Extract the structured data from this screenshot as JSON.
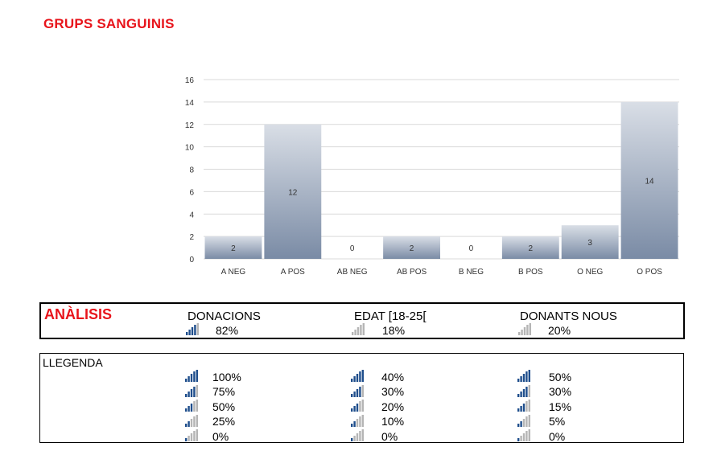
{
  "title": "GRUPS SANGUINIS",
  "chart_data": {
    "type": "bar",
    "categories": [
      "A NEG",
      "A POS",
      "AB NEG",
      "AB POS",
      "B NEG",
      "B POS",
      "O NEG",
      "O POS"
    ],
    "values": [
      2,
      12,
      0,
      2,
      0,
      2,
      3,
      14
    ],
    "ylim": [
      0,
      16
    ],
    "yticks": [
      0,
      2,
      4,
      6,
      8,
      10,
      12,
      14,
      16
    ],
    "grid": true,
    "bar_gradient": [
      "#d9dee6",
      "#7a8ba5"
    ]
  },
  "analysis": {
    "title": "ANÀLISIS",
    "columns": [
      {
        "label": "DONACIONS",
        "value": "82%",
        "level": 4
      },
      {
        "label": "EDAT [18-25[",
        "value": "18%",
        "level": 0
      },
      {
        "label": "DONANTS NOUS",
        "value": "20%",
        "level": 0
      }
    ]
  },
  "legend": {
    "title": "LLEGENDA",
    "columns": [
      {
        "rows": [
          {
            "value": "100%",
            "level": 5
          },
          {
            "value": "75%",
            "level": 4
          },
          {
            "value": "50%",
            "level": 3
          },
          {
            "value": "25%",
            "level": 2
          },
          {
            "value": "0%",
            "level": 1
          }
        ]
      },
      {
        "rows": [
          {
            "value": "40%",
            "level": 5
          },
          {
            "value": "30%",
            "level": 4
          },
          {
            "value": "20%",
            "level": 3
          },
          {
            "value": "10%",
            "level": 2
          },
          {
            "value": "0%",
            "level": 1
          }
        ]
      },
      {
        "rows": [
          {
            "value": "50%",
            "level": 5
          },
          {
            "value": "30%",
            "level": 4
          },
          {
            "value": "15%",
            "level": 3
          },
          {
            "value": "5%",
            "level": 2
          },
          {
            "value": "0%",
            "level": 1
          }
        ]
      }
    ]
  },
  "colors": {
    "accent": "#e8141b",
    "icon_active": "#1f4e8c",
    "icon_inactive": "#b5b5b5"
  }
}
